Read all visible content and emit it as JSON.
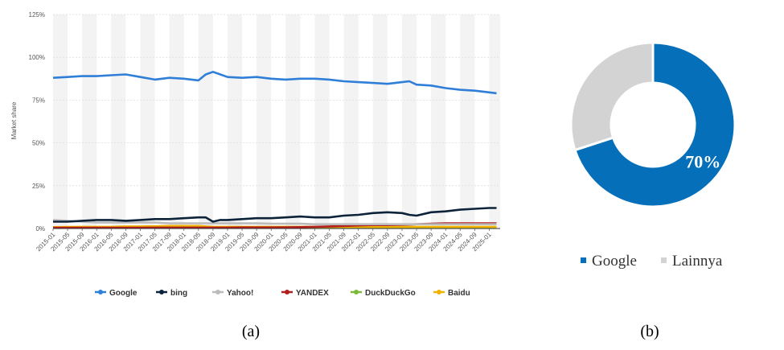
{
  "colors": {
    "Google": "#2f7ed8",
    "bing": "#0d233a",
    "Yahoo!": "#bbbbbb",
    "YANDEX": "#b01e1e",
    "DuckDuckGo": "#7cbb3a",
    "Baidu": "#f0b400",
    "pie_google": "#0570b9",
    "pie_other": "#d3d3d3"
  },
  "captions": {
    "a": "(a)",
    "b": "(b)"
  },
  "chart_data": [
    {
      "type": "line",
      "ylabel": "Market share",
      "ylim": [
        0,
        125
      ],
      "y_ticks": [
        "0%",
        "25%",
        "50%",
        "75%",
        "100%",
        "125%"
      ],
      "y_tick_values": [
        0,
        25,
        50,
        75,
        100,
        125
      ],
      "x_tick_labels": [
        "2015-01",
        "2015-05",
        "2015-09",
        "2016-01",
        "2016-05",
        "2016-09",
        "2017-01",
        "2017-05",
        "2017-09",
        "2018-01",
        "2018-05",
        "2018-09",
        "2019-01",
        "2019-05",
        "2019-09",
        "2020-01",
        "2020-05",
        "2020-09",
        "2021-01",
        "2021-05",
        "2021-09",
        "2022-01",
        "2022-05",
        "2022-09",
        "2023-01",
        "2023-05",
        "2023-09",
        "2024-01",
        "2024-05",
        "2024-09",
        "2025-01"
      ],
      "x": [
        "2015-01",
        "2015-05",
        "2015-09",
        "2016-01",
        "2016-05",
        "2016-09",
        "2017-01",
        "2017-05",
        "2017-09",
        "2018-01",
        "2018-05",
        "2018-07",
        "2018-09",
        "2018-11",
        "2019-01",
        "2019-05",
        "2019-09",
        "2020-01",
        "2020-05",
        "2020-09",
        "2021-01",
        "2021-05",
        "2021-09",
        "2022-01",
        "2022-05",
        "2022-09",
        "2023-01",
        "2023-03",
        "2023-05",
        "2023-09",
        "2024-01",
        "2024-05",
        "2024-09",
        "2025-01",
        "2025-03"
      ],
      "legend_position": "bottom",
      "grid": "alternating vertical bands",
      "series": [
        {
          "name": "Google",
          "values": [
            88,
            88.5,
            89,
            89,
            89.5,
            90,
            88.5,
            87,
            88,
            87.5,
            86.5,
            90,
            91.5,
            90,
            88.5,
            88,
            88.5,
            87.5,
            87,
            87.5,
            87.5,
            87,
            86,
            85.5,
            85,
            84.5,
            85.5,
            86,
            84,
            83.5,
            82,
            81,
            80.5,
            79.5,
            79
          ]
        },
        {
          "name": "bing",
          "values": [
            4,
            4,
            4.5,
            5,
            5,
            4.5,
            5,
            5.5,
            5.5,
            6,
            6.5,
            6.5,
            4,
            5,
            5,
            5.5,
            6,
            6,
            6.5,
            7,
            6.5,
            6.5,
            7.5,
            8,
            9,
            9.5,
            9,
            8,
            7.5,
            9.5,
            10,
            11,
            11.5,
            12,
            12
          ]
        },
        {
          "name": "Yahoo!",
          "values": [
            5,
            4.5,
            4,
            3.5,
            3.5,
            3.5,
            3.5,
            3.5,
            3,
            3,
            3,
            3,
            3,
            3,
            3,
            3,
            3,
            2.8,
            2.8,
            2.8,
            2.5,
            2.5,
            2.5,
            2.5,
            2.5,
            2.5,
            2.5,
            2.5,
            2.5,
            2.5,
            2.5,
            2.5,
            2.5,
            2.5,
            2.5
          ]
        },
        {
          "name": "YANDEX",
          "values": [
            0.4,
            0.4,
            0.4,
            0.4,
            0.4,
            0.4,
            0.4,
            0.5,
            0.5,
            0.5,
            0.5,
            0.5,
            0.5,
            0.5,
            0.5,
            0.6,
            0.6,
            0.6,
            0.7,
            0.8,
            1,
            1.2,
            1.5,
            1.8,
            2,
            2,
            2.2,
            2.3,
            2.5,
            2.8,
            3,
            3,
            3,
            3,
            3
          ]
        },
        {
          "name": "DuckDuckGo",
          "values": [
            0.4,
            0.4,
            0.5,
            0.5,
            0.5,
            0.5,
            0.6,
            0.6,
            0.6,
            0.6,
            0.7,
            0.7,
            0.7,
            0.7,
            0.7,
            0.7,
            0.7,
            0.7,
            0.7,
            0.7,
            0.7,
            0.7,
            0.7,
            0.7,
            0.7,
            0.7,
            0.7,
            0.7,
            0.7,
            0.7,
            0.7,
            0.7,
            0.7,
            0.7,
            0.7
          ]
        },
        {
          "name": "Baidu",
          "values": [
            0.8,
            0.9,
            1,
            1,
            1,
            1.2,
            1.2,
            1.3,
            1.5,
            1.5,
            1.5,
            1.2,
            1,
            1,
            1,
            1,
            1,
            1,
            1,
            1,
            1,
            1,
            1,
            1,
            1,
            1,
            1,
            1,
            1,
            1,
            1,
            1,
            1,
            1,
            1
          ]
        }
      ]
    },
    {
      "type": "pie",
      "variant": "donut",
      "slices": [
        {
          "name": "Google",
          "value": 70,
          "label": "70%"
        },
        {
          "name": "Lainnya",
          "value": 30,
          "label": ""
        }
      ],
      "legend_position": "bottom"
    }
  ]
}
